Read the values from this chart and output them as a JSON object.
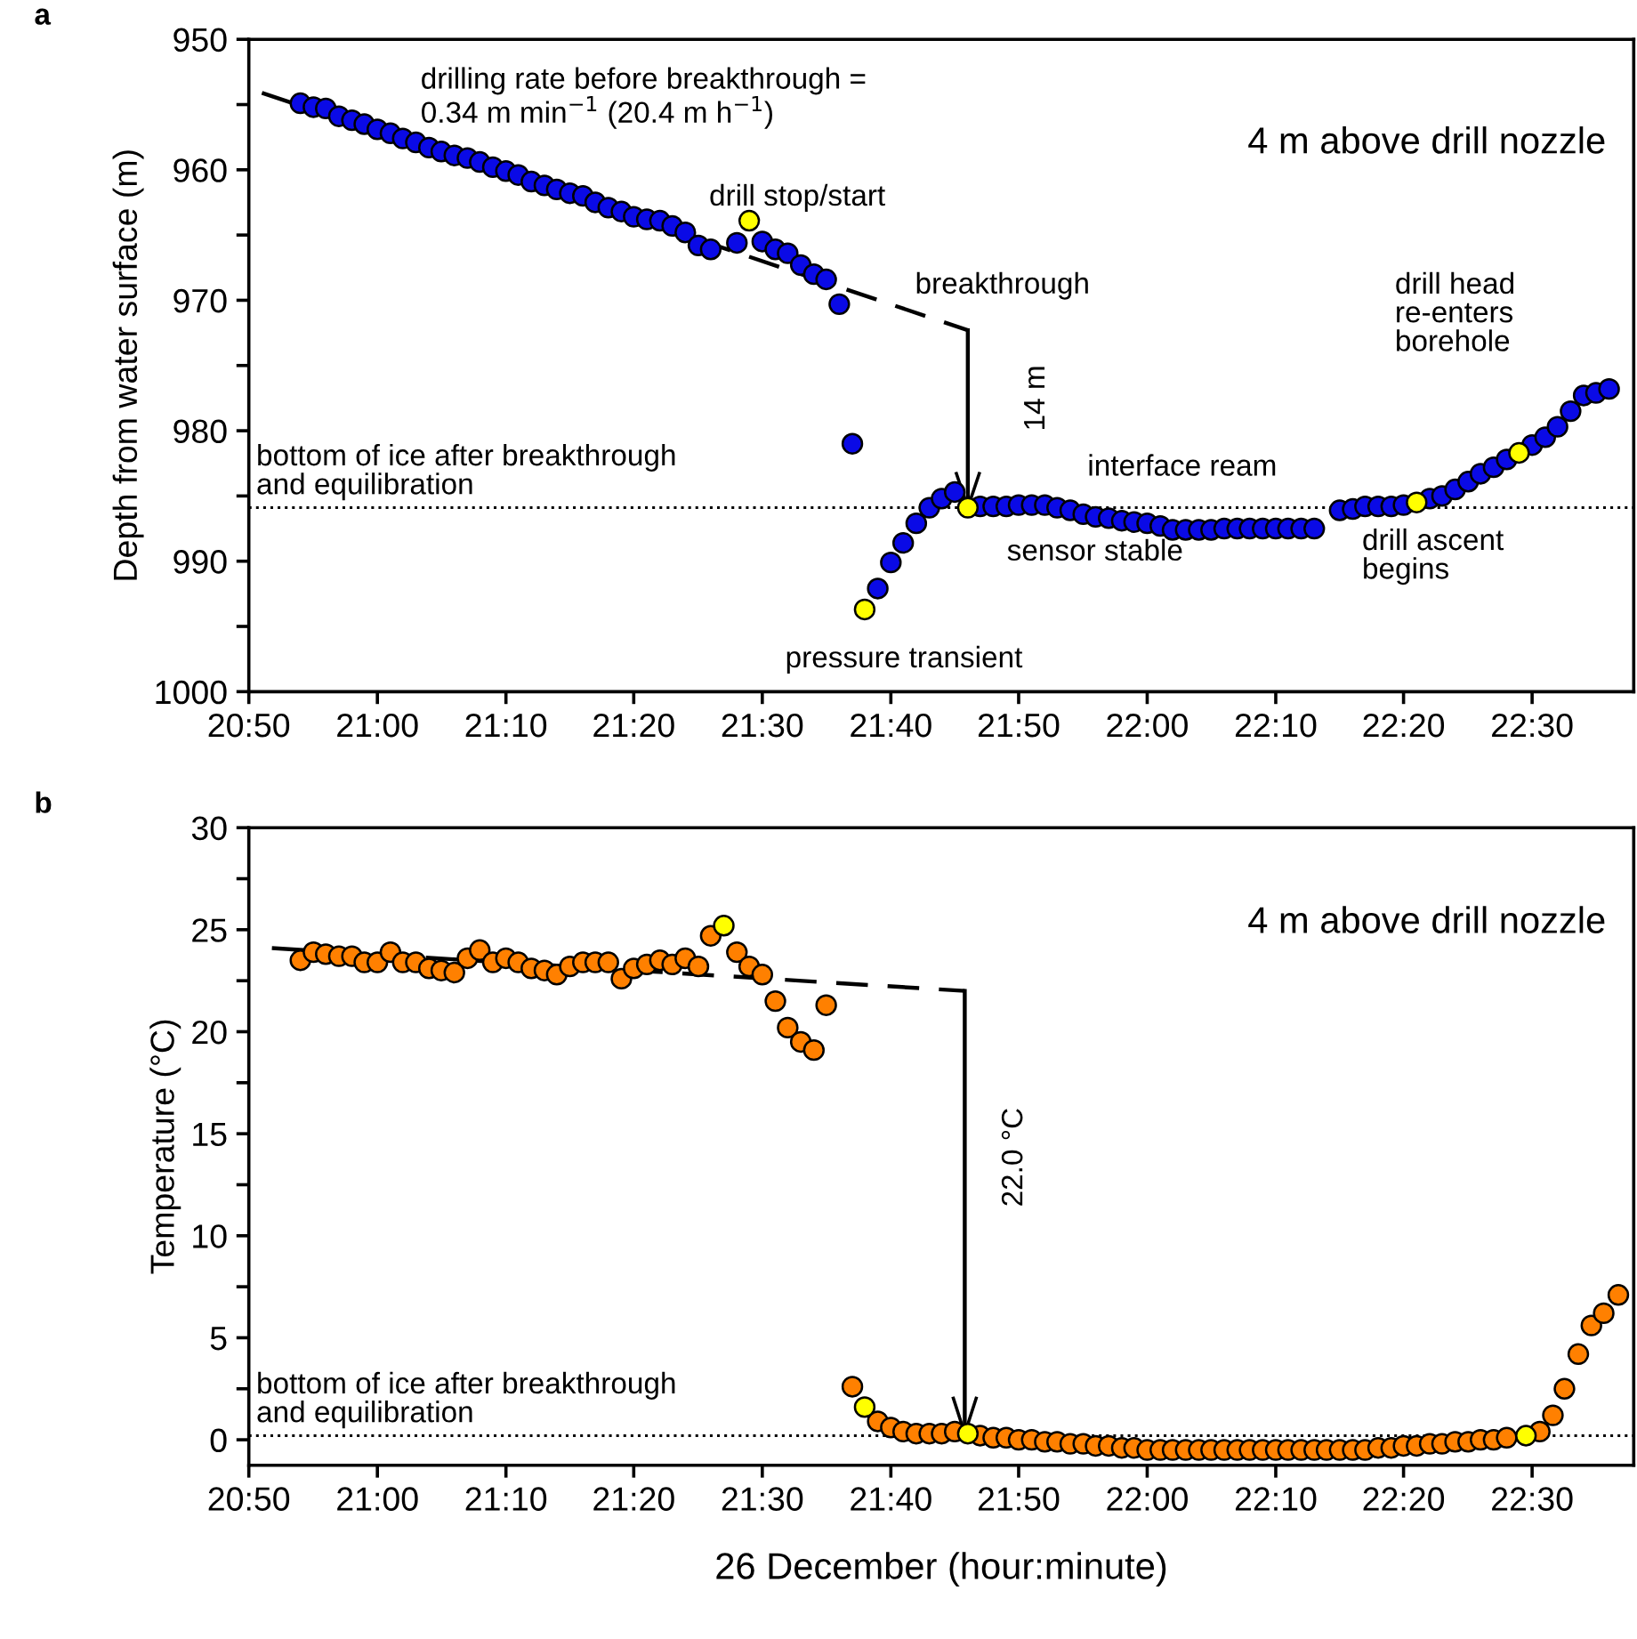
{
  "chart_data": [
    {
      "type": "scatter",
      "title": "a",
      "ylabel": "Depth from water surface (m)",
      "xlim": [
        20.833,
        22.632
      ],
      "xticks": [
        {
          "value": 20.833,
          "label": "20:50"
        },
        {
          "value": 21.0,
          "label": "21:00"
        },
        {
          "value": 21.167,
          "label": "21:10"
        },
        {
          "value": 21.333,
          "label": "21:20"
        },
        {
          "value": 21.5,
          "label": "21:30"
        },
        {
          "value": 21.667,
          "label": "21:40"
        },
        {
          "value": 21.833,
          "label": "21:50"
        },
        {
          "value": 22.0,
          "label": "22:00"
        },
        {
          "value": 22.167,
          "label": "22:10"
        },
        {
          "value": 22.333,
          "label": "22:20"
        },
        {
          "value": 22.5,
          "label": "22:30"
        }
      ],
      "ylim": [
        1000,
        950
      ],
      "yticks": [
        950,
        {
          "value": 955,
          "label": null
        },
        960,
        {
          "value": 965,
          "label": null
        },
        970,
        {
          "value": 975,
          "label": null
        },
        980,
        {
          "value": 985,
          "label": null
        },
        990,
        {
          "value": 995,
          "label": null
        },
        1000
      ],
      "grid": false,
      "marker": "circle",
      "series": [
        {
          "color": "#0a0ae6",
          "x": [
            20.9,
            20.917,
            20.933,
            20.95,
            20.967,
            20.983,
            21.0,
            21.017,
            21.033,
            21.05,
            21.067,
            21.083,
            21.1,
            21.117,
            21.133,
            21.15,
            21.167,
            21.183,
            21.2,
            21.217,
            21.233,
            21.25,
            21.267,
            21.283,
            21.3,
            21.317,
            21.333,
            21.35,
            21.367,
            21.383,
            21.4,
            21.417,
            21.433,
            21.467,
            21.5,
            21.517,
            21.533,
            21.55,
            21.567,
            21.583,
            21.6,
            21.617,
            21.65,
            21.667,
            21.683,
            21.7,
            21.717,
            21.733,
            21.75,
            21.783,
            21.8,
            21.817,
            21.833,
            21.85,
            21.867,
            21.883,
            21.9,
            21.917,
            21.933,
            21.95,
            21.967,
            21.983,
            22.0,
            22.017,
            22.033,
            22.05,
            22.067,
            22.083,
            22.1,
            22.117,
            22.133,
            22.15,
            22.167,
            22.183,
            22.2,
            22.217,
            22.25,
            22.267,
            22.283,
            22.3,
            22.317,
            22.333,
            22.367,
            22.383,
            22.4,
            22.417,
            22.433,
            22.45,
            22.467,
            22.5,
            22.517,
            22.533,
            22.55,
            22.567,
            22.583,
            22.6
          ],
          "values": [
            954.9,
            955.2,
            955.3,
            955.9,
            956.2,
            956.5,
            956.9,
            957.2,
            957.6,
            957.9,
            958.3,
            958.6,
            958.9,
            959.1,
            959.4,
            959.8,
            960.1,
            960.4,
            960.9,
            961.2,
            961.5,
            961.8,
            962.0,
            962.5,
            962.9,
            963.2,
            963.6,
            963.8,
            963.9,
            964.3,
            964.8,
            965.8,
            966.1,
            965.6,
            965.5,
            966.1,
            966.4,
            967.3,
            968.0,
            968.4,
            970.3,
            981.0,
            992.1,
            990.1,
            988.6,
            987.1,
            985.9,
            985.2,
            984.7,
            985.8,
            985.8,
            985.8,
            985.7,
            985.7,
            985.7,
            985.9,
            986.1,
            986.4,
            986.6,
            986.7,
            986.9,
            987.0,
            987.1,
            987.3,
            987.6,
            987.6,
            987.6,
            987.6,
            987.5,
            987.5,
            987.5,
            987.5,
            987.5,
            987.5,
            987.5,
            987.5,
            986.1,
            986.0,
            985.8,
            985.8,
            985.8,
            985.7,
            985.2,
            985.0,
            984.5,
            983.9,
            983.3,
            982.8,
            982.2,
            981.1,
            980.5,
            979.7,
            978.5,
            977.3,
            977.1,
            976.8
          ]
        },
        {
          "color": "#ffff00",
          "x": [
            21.483,
            21.633,
            21.767,
            22.35,
            22.483
          ],
          "values": [
            963.9,
            993.7,
            985.9,
            985.5,
            981.7
          ]
        },
        {
          "type": "line",
          "color": "#000000",
          "line_style": "dashed",
          "marker": "none",
          "x": [
            20.85,
            21.767
          ],
          "values": [
            954.1,
            972.3
          ]
        },
        {
          "type": "line",
          "color": "#000000",
          "line_style": "solid",
          "marker": "none",
          "x": [
            21.767,
            21.767
          ],
          "values": [
            972.3,
            985.9
          ]
        }
      ],
      "ref_lines": [
        {
          "axis": "y",
          "value": 985.9,
          "label": "bottom of ice after breakthrough\nand equilibration",
          "line_style": "dotted",
          "color": "#000000"
        }
      ],
      "annotations": [
        "drilling rate before breakthrough =\n0.34 m min$^{−1}$ (20.4 m h$^{−1}$)",
        "drill stop/start",
        {
          "text": "breakthrough",
          "x": 21.767,
          "y": 972.3
        },
        "4 m above drill nozzle",
        "14 m",
        "interface ream",
        "sensor stable",
        "pressure transient",
        "drill ascent\nbegins",
        "drill head\nre-enters\nborehole"
      ]
    },
    {
      "type": "scatter",
      "title": "b",
      "ylabel": "Temperature (°C)",
      "xlabel": "26 December (hour:minute)",
      "xlim": [
        20.833,
        22.632
      ],
      "xticks": [
        {
          "value": 20.833,
          "label": "20:50"
        },
        {
          "value": 21.0,
          "label": "21:00"
        },
        {
          "value": 21.167,
          "label": "21:10"
        },
        {
          "value": 21.333,
          "label": "21:20"
        },
        {
          "value": 21.5,
          "label": "21:30"
        },
        {
          "value": 21.667,
          "label": "21:40"
        },
        {
          "value": 21.833,
          "label": "21:50"
        },
        {
          "value": 22.0,
          "label": "22:00"
        },
        {
          "value": 22.167,
          "label": "22:10"
        },
        {
          "value": 22.333,
          "label": "22:20"
        },
        {
          "value": 22.5,
          "label": "22:30"
        }
      ],
      "ylim": [
        -1.25,
        30
      ],
      "yticks": [
        0,
        {
          "value": 2.5,
          "label": null
        },
        5,
        {
          "value": 7.5,
          "label": null
        },
        10,
        {
          "value": 12.5,
          "label": null
        },
        15,
        {
          "value": 17.5,
          "label": null
        },
        20,
        {
          "value": 22.5,
          "label": null
        },
        25,
        {
          "value": 27.5,
          "label": null
        },
        30
      ],
      "grid": false,
      "marker": "circle",
      "series": [
        {
          "color": "#ff8000",
          "x": [
            20.9,
            20.917,
            20.933,
            20.95,
            20.967,
            20.983,
            21.0,
            21.017,
            21.033,
            21.05,
            21.067,
            21.083,
            21.1,
            21.117,
            21.133,
            21.15,
            21.167,
            21.183,
            21.2,
            21.217,
            21.233,
            21.25,
            21.267,
            21.283,
            21.3,
            21.317,
            21.333,
            21.35,
            21.367,
            21.383,
            21.4,
            21.417,
            21.433,
            21.467,
            21.483,
            21.5,
            21.517,
            21.533,
            21.55,
            21.567,
            21.583,
            21.617,
            21.65,
            21.667,
            21.683,
            21.7,
            21.717,
            21.733,
            21.75,
            21.783,
            21.8,
            21.817,
            21.833,
            21.85,
            21.867,
            21.883,
            21.9,
            21.917,
            21.933,
            21.95,
            21.967,
            21.983,
            22.0,
            22.017,
            22.033,
            22.05,
            22.067,
            22.083,
            22.1,
            22.117,
            22.133,
            22.15,
            22.167,
            22.183,
            22.2,
            22.217,
            22.233,
            22.25,
            22.267,
            22.283,
            22.3,
            22.317,
            22.333,
            22.35,
            22.367,
            22.383,
            22.4,
            22.417,
            22.433,
            22.45,
            22.467,
            22.51,
            22.527,
            22.542,
            22.56,
            22.577,
            22.593,
            22.612
          ],
          "values": [
            23.5,
            23.9,
            23.8,
            23.7,
            23.7,
            23.4,
            23.4,
            23.9,
            23.4,
            23.4,
            23.1,
            23.0,
            22.9,
            23.6,
            24.0,
            23.4,
            23.6,
            23.4,
            23.1,
            23.0,
            22.8,
            23.2,
            23.4,
            23.4,
            23.4,
            22.6,
            23.1,
            23.3,
            23.5,
            23.3,
            23.6,
            23.2,
            24.7,
            23.9,
            23.2,
            22.8,
            21.5,
            20.2,
            19.5,
            19.1,
            21.3,
            2.6,
            0.9,
            0.6,
            0.4,
            0.3,
            0.3,
            0.3,
            0.4,
            0.2,
            0.1,
            0.1,
            0.0,
            0.0,
            -0.1,
            -0.1,
            -0.2,
            -0.2,
            -0.3,
            -0.3,
            -0.4,
            -0.4,
            -0.5,
            -0.5,
            -0.5,
            -0.5,
            -0.5,
            -0.5,
            -0.5,
            -0.5,
            -0.5,
            -0.5,
            -0.5,
            -0.5,
            -0.5,
            -0.5,
            -0.5,
            -0.5,
            -0.5,
            -0.5,
            -0.4,
            -0.4,
            -0.3,
            -0.3,
            -0.2,
            -0.2,
            -0.1,
            -0.1,
            0.0,
            0.0,
            0.1,
            0.4,
            1.2,
            2.5,
            4.2,
            5.6,
            6.2,
            7.1
          ]
        },
        {
          "color": "#ffff00",
          "x": [
            21.45,
            21.633,
            21.767,
            22.492
          ],
          "values": [
            25.2,
            1.6,
            0.3,
            0.2
          ]
        },
        {
          "type": "line",
          "color": "#000000",
          "line_style": "dashed",
          "marker": "none",
          "x": [
            20.863,
            21.763
          ],
          "values": [
            24.1,
            22.0
          ]
        },
        {
          "type": "line",
          "color": "#000000",
          "line_style": "solid",
          "marker": "none",
          "x": [
            21.763,
            21.763
          ],
          "values": [
            22.0,
            0.3
          ]
        }
      ],
      "ref_lines": [
        {
          "axis": "y",
          "value": 0.2,
          "label": "bottom of ice after breakthrough\nand equilibration",
          "line_style": "dotted",
          "color": "#000000"
        }
      ],
      "annotations": [
        "4 m above drill nozzle",
        "22.0 °C"
      ]
    }
  ]
}
